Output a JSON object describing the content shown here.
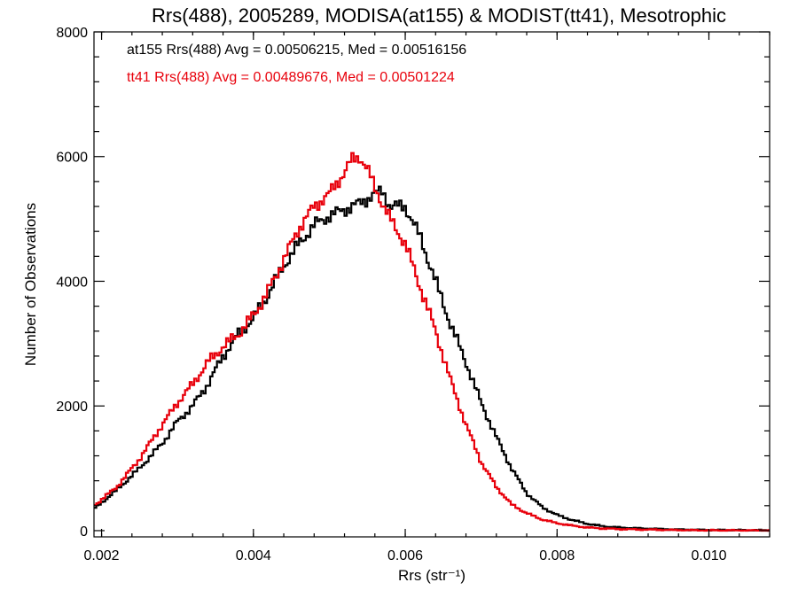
{
  "chart_data": {
    "type": "line",
    "title": "Rrs(488), 2005289, MODISA(at155) & MODIST(tt41), Mesotrophic",
    "xlabel": "Rrs (str⁻¹)",
    "ylabel": "Number of Observations",
    "xlim": [
      0.0019,
      0.0108
    ],
    "ylim": [
      -100,
      8000
    ],
    "xticks": [
      0.002,
      0.004,
      0.006,
      0.008,
      0.01
    ],
    "xtick_labels": [
      "0.002",
      "0.004",
      "0.006",
      "0.008",
      "0.010"
    ],
    "yticks": [
      0,
      2000,
      4000,
      6000,
      8000
    ],
    "ytick_labels": [
      "0",
      "2000",
      "4000",
      "6000",
      "8000"
    ],
    "grid": false,
    "legend_position": "top-left",
    "series": [
      {
        "name": "at155",
        "color": "#000000",
        "legend_text": "at155 Rrs(488) Avg = 0.00506215, Med = 0.00516156",
        "x": [
          0.0019,
          0.0022,
          0.0025,
          0.0028,
          0.003,
          0.0032,
          0.0034,
          0.0036,
          0.0038,
          0.004,
          0.0042,
          0.0044,
          0.0046,
          0.0048,
          0.005,
          0.0052,
          0.0054,
          0.0056,
          0.0057,
          0.0058,
          0.006,
          0.0062,
          0.0064,
          0.0066,
          0.0068,
          0.007,
          0.0072,
          0.0074,
          0.0076,
          0.0078,
          0.008,
          0.0082,
          0.0084,
          0.0086,
          0.0088,
          0.009,
          0.0095,
          0.01,
          0.0108
        ],
        "y": [
          350,
          650,
          1000,
          1400,
          1750,
          2000,
          2350,
          2800,
          3150,
          3400,
          3800,
          4250,
          4600,
          4900,
          5050,
          5150,
          5250,
          5400,
          5450,
          5200,
          5200,
          4700,
          4000,
          3300,
          2700,
          2050,
          1500,
          1000,
          600,
          380,
          250,
          170,
          110,
          70,
          50,
          40,
          20,
          10,
          5
        ]
      },
      {
        "name": "tt41",
        "color": "#e8000b",
        "legend_text": "tt41 Rrs(488) Avg = 0.00489676, Med = 0.00501224",
        "x": [
          0.0019,
          0.0022,
          0.0025,
          0.0028,
          0.003,
          0.0032,
          0.0034,
          0.0036,
          0.0038,
          0.004,
          0.0042,
          0.0044,
          0.0046,
          0.0048,
          0.005,
          0.0052,
          0.0053,
          0.0054,
          0.0055,
          0.0056,
          0.0058,
          0.006,
          0.0062,
          0.0064,
          0.0066,
          0.0068,
          0.007,
          0.0072,
          0.0074,
          0.0076,
          0.0078,
          0.008,
          0.0082,
          0.0084,
          0.0086,
          0.0088,
          0.009,
          0.0095,
          0.01,
          0.0108
        ],
        "y": [
          400,
          700,
          1150,
          1700,
          2050,
          2350,
          2700,
          2950,
          3150,
          3450,
          3850,
          4350,
          4850,
          5200,
          5400,
          5750,
          5950,
          6000,
          5800,
          5500,
          5000,
          4600,
          3900,
          3200,
          2400,
          1700,
          1100,
          700,
          420,
          280,
          180,
          120,
          80,
          50,
          35,
          25,
          20,
          10,
          5,
          3
        ]
      }
    ]
  }
}
